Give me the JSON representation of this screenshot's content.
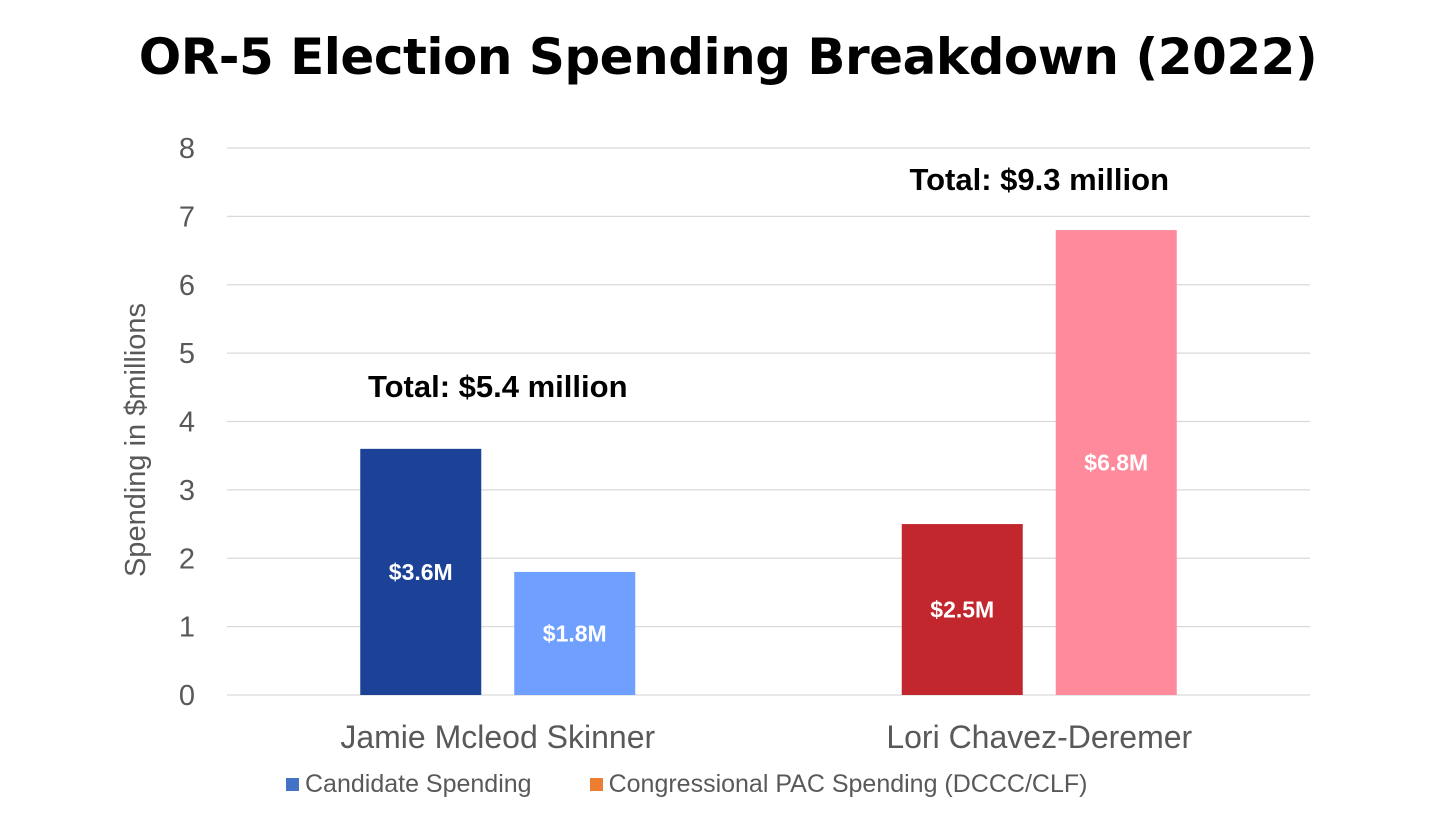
{
  "chart_data": {
    "type": "bar",
    "title": "OR-5 Election Spending Breakdown (2022)",
    "xlabel": "",
    "ylabel": "Spending in $millions",
    "ylim": [
      0,
      8
    ],
    "yticks": [
      "0",
      "1",
      "2",
      "3",
      "4",
      "5",
      "6",
      "7",
      "8"
    ],
    "grid": true,
    "legend_position": "bottom",
    "categories": [
      "Jamie Mcleod Skinner",
      "Lori Chavez-Deremer"
    ],
    "series": [
      {
        "name": "Candidate Spending",
        "values": [
          3.6,
          2.5
        ],
        "labels": [
          "$3.6M",
          "$2.5M"
        ],
        "colors": [
          "#1b4297",
          "#c1272d"
        ],
        "legend_color": "#4472c4"
      },
      {
        "name": "Congressional PAC Spending (DCCC/CLF)",
        "values": [
          1.8,
          6.8
        ],
        "labels": [
          "$1.8M",
          "$6.8M"
        ],
        "colors": [
          "#6f9fff",
          "#ff8a9c"
        ],
        "legend_color": "#ed7d31"
      }
    ],
    "annotations": [
      {
        "category": "Jamie Mcleod Skinner",
        "text": "Total: $5.4 million",
        "value": 5.4
      },
      {
        "category": "Lori Chavez-Deremer",
        "text": "Total: $9.3 million",
        "value": 9.3
      }
    ]
  }
}
